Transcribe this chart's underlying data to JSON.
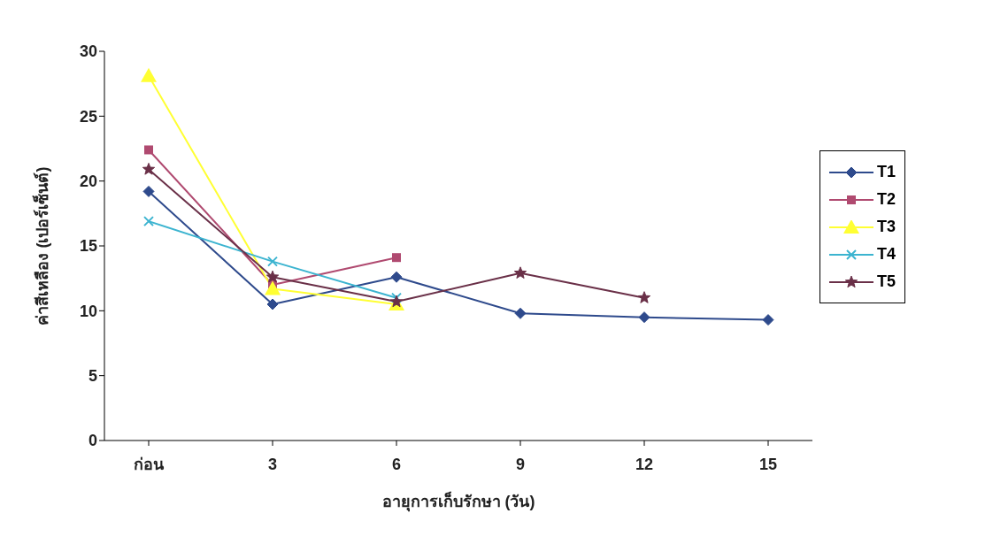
{
  "chart_data": {
    "type": "line",
    "xlabel": "อายุการเก็บรักษา (วัน)",
    "ylabel": "ค่าสีเหลือง (เปอร์เซ็นต์)",
    "categories": [
      "ก่อน",
      "3",
      "6",
      "9",
      "12",
      "15"
    ],
    "series": [
      {
        "name": "T1",
        "color": "#2e4a8c",
        "marker": "diamond",
        "values": [
          19.2,
          10.5,
          12.6,
          9.8,
          9.5,
          9.3
        ]
      },
      {
        "name": "T2",
        "color": "#b04a70",
        "marker": "square",
        "values": [
          22.4,
          12.0,
          14.1,
          null,
          null,
          null
        ]
      },
      {
        "name": "T3",
        "color": "#ffff33",
        "marker": "triangle",
        "values": [
          28.1,
          11.7,
          10.5,
          null,
          null,
          null
        ]
      },
      {
        "name": "T4",
        "color": "#3cb4d0",
        "marker": "cross",
        "values": [
          16.9,
          13.8,
          11.0,
          null,
          null,
          null
        ]
      },
      {
        "name": "T5",
        "color": "#6a3048",
        "marker": "star",
        "values": [
          20.9,
          12.6,
          10.7,
          12.9,
          11.0,
          null
        ]
      }
    ],
    "ylim": [
      0,
      30
    ],
    "yticks": [
      0,
      5,
      10,
      15,
      20,
      25,
      30
    ],
    "grid": false,
    "legend": "right"
  }
}
